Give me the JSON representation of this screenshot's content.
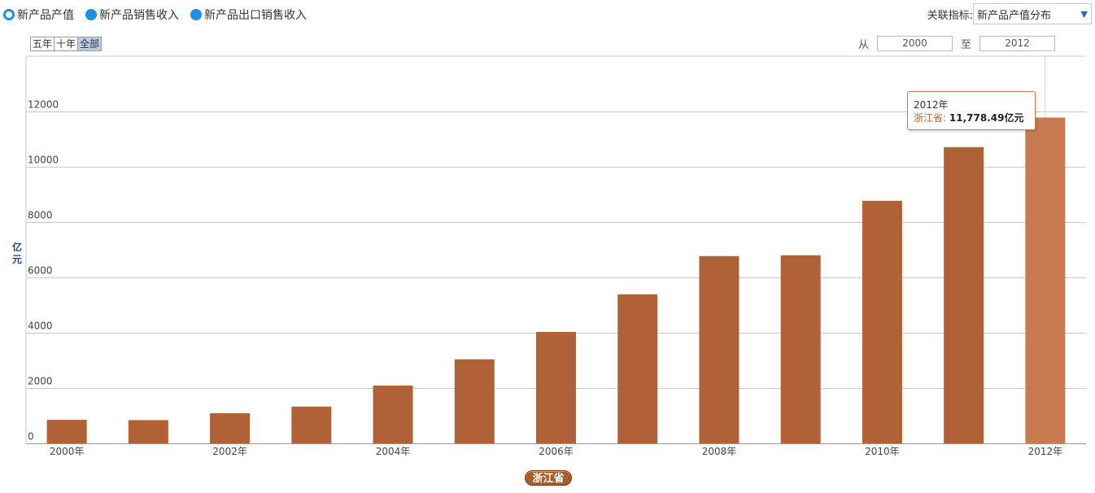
{
  "radios": [
    {
      "label": "新产品产值",
      "selected": true
    },
    {
      "label": "新产品销售收入",
      "selected": false
    },
    {
      "label": "新产品出口销售收入",
      "selected": false
    }
  ],
  "indicator": {
    "label": "关联指标:",
    "value": "新产品产值分布"
  },
  "range_buttons": [
    {
      "label": "五年",
      "active": false
    },
    {
      "label": "十年",
      "active": false
    },
    {
      "label": "全部",
      "active": true
    }
  ],
  "year_range": {
    "from_label": "从",
    "from": "2000",
    "to_label": "至",
    "to": "2012"
  },
  "tooltip": {
    "year": "2012年",
    "series": "浙江省:",
    "value": "11,778.49亿元"
  },
  "chart_data": {
    "type": "bar",
    "categories": [
      "2000年",
      "2001年",
      "2002年",
      "2003年",
      "2004年",
      "2005年",
      "2006年",
      "2007年",
      "2008年",
      "2009年",
      "2010年",
      "2011年",
      "2012年"
    ],
    "x_tick_labels": [
      "2000年",
      "2002年",
      "2004年",
      "2006年",
      "2008年",
      "2010年",
      "2012年"
    ],
    "series": [
      {
        "name": "浙江省",
        "values": [
          850,
          840,
          1090,
          1330,
          2090,
          3040,
          4030,
          5390,
          6770,
          6800,
          8770,
          10710,
          11778.49
        ]
      }
    ],
    "ylabel": "亿元",
    "ylim": [
      0,
      14000
    ],
    "yticks": [
      0,
      2000,
      4000,
      6000,
      8000,
      10000,
      12000
    ],
    "grid": true,
    "highlight_index": 12,
    "colors": {
      "bar": "#b06236",
      "highlight": "#c87b50",
      "grid": "#c8c8c8",
      "axis": "#999999",
      "ylabel": "#1f4a7a"
    }
  }
}
